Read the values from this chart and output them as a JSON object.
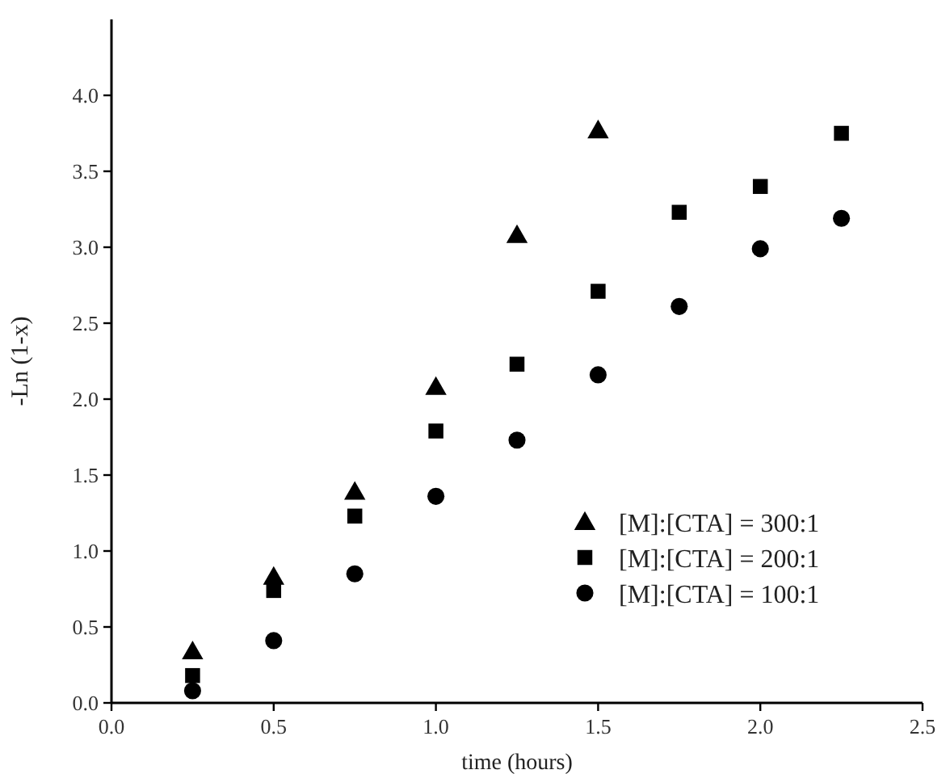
{
  "chart_data": {
    "type": "scatter",
    "xlabel": "time (hours)",
    "ylabel": "-Ln (1-x)",
    "xlim": [
      0,
      2.5
    ],
    "xticks": [
      {
        "value": 0,
        "label": "0.0"
      },
      0.5,
      {
        "value": 1,
        "label": "1.0"
      },
      1.5,
      {
        "value": 2,
        "label": "2.0"
      },
      2.5
    ],
    "ylim": [
      0,
      4.5
    ],
    "yticks": [
      {
        "value": 0,
        "label": "0.0"
      },
      0.5,
      {
        "value": 1,
        "label": "1.0"
      },
      1.5,
      {
        "value": 2,
        "label": "2.0"
      },
      2.5,
      {
        "value": 3,
        "label": "3.0"
      },
      3.5,
      {
        "value": 4,
        "label": "4.0"
      }
    ],
    "legend": "bottom right",
    "grid": false,
    "series": [
      {
        "name": "[M]:[CTA] = 300:1",
        "color": "#000000",
        "marker": "triangle",
        "x": [
          0.25,
          0.5,
          0.75,
          1.0,
          1.25,
          1.5
        ],
        "values": [
          0.34,
          0.83,
          1.39,
          2.08,
          3.08,
          3.77
        ]
      },
      {
        "name": "[M]:[CTA] = 200:1",
        "color": "#000000",
        "marker": "square",
        "x": [
          0.25,
          0.5,
          0.75,
          1.0,
          1.25,
          1.5,
          1.75,
          2.0,
          2.25
        ],
        "values": [
          0.18,
          0.74,
          1.23,
          1.79,
          2.23,
          2.71,
          3.23,
          3.4,
          3.75
        ]
      },
      {
        "name": "[M]:[CTA] = 100:1",
        "color": "#000000",
        "marker": "circle",
        "x": [
          0.25,
          0.5,
          0.75,
          1.0,
          1.25,
          1.5,
          1.75,
          2.0,
          2.25
        ],
        "values": [
          0.08,
          0.41,
          0.85,
          1.36,
          1.73,
          2.16,
          2.61,
          2.99,
          3.19
        ]
      }
    ]
  }
}
